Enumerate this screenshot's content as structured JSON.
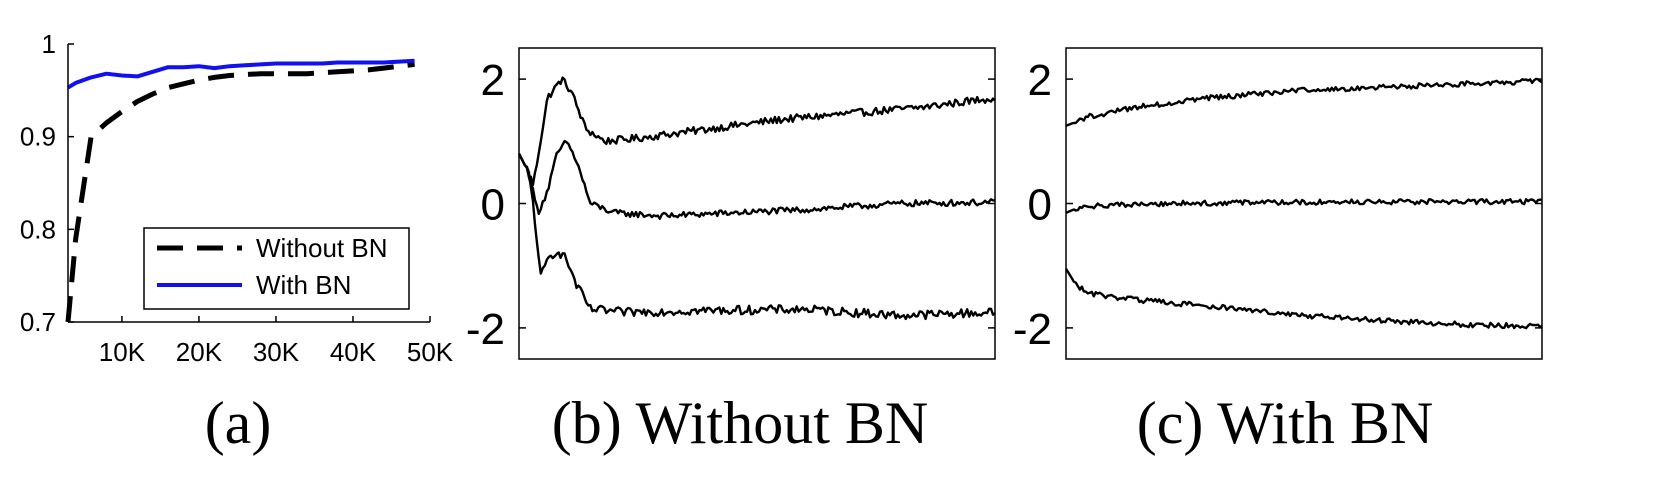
{
  "colors": {
    "with_bn": "#1010f0",
    "without_bn": "#000000",
    "axes": "#000000"
  },
  "chart_data": [
    {
      "type": "line",
      "caption": "(a)",
      "xlim": [
        3000,
        50000
      ],
      "ylim": [
        0.7,
        1.0
      ],
      "yticks": [
        0.7,
        0.8,
        0.9,
        1
      ],
      "ytick_labels": [
        "0.7",
        "0.8",
        "0.9",
        "1"
      ],
      "xticks": [
        10000,
        20000,
        30000,
        40000,
        50000
      ],
      "xtick_labels": [
        "10K",
        "20K",
        "30K",
        "40K",
        "50K"
      ],
      "legend": {
        "position": "lower-right",
        "entries": [
          "Without BN",
          "With BN"
        ]
      },
      "x": [
        3000,
        4000,
        6000,
        8000,
        10000,
        12000,
        14000,
        16000,
        18000,
        20000,
        22000,
        24000,
        26000,
        28000,
        30000,
        32000,
        34000,
        36000,
        38000,
        40000,
        42000,
        44000,
        46000,
        48000
      ],
      "series": [
        {
          "name": "Without BN",
          "style": "dashed",
          "values": [
            0.7,
            0.79,
            0.9,
            0.915,
            0.927,
            0.938,
            0.946,
            0.953,
            0.957,
            0.961,
            0.964,
            0.966,
            0.967,
            0.968,
            0.968,
            0.968,
            0.968,
            0.969,
            0.97,
            0.971,
            0.972,
            0.974,
            0.976,
            0.978
          ]
        },
        {
          "name": "With BN",
          "style": "solid",
          "values": [
            0.953,
            0.958,
            0.964,
            0.968,
            0.966,
            0.965,
            0.97,
            0.975,
            0.975,
            0.976,
            0.974,
            0.976,
            0.977,
            0.978,
            0.979,
            0.979,
            0.979,
            0.979,
            0.98,
            0.98,
            0.98,
            0.98,
            0.981,
            0.982
          ]
        }
      ]
    },
    {
      "type": "line",
      "caption": "(b) Without BN",
      "ylim": [
        -2.5,
        2.5
      ],
      "yticks": [
        -2,
        0,
        2
      ],
      "ytick_labels": [
        "-2",
        "0",
        "2"
      ],
      "x_tick_labels_shown": false,
      "samples": 240,
      "series": [
        {
          "name": "",
          "style": "solid",
          "noise": 0.06,
          "keyframes": [
            [
              0.0,
              0.8
            ],
            [
              0.02,
              0.5
            ],
            [
              0.03,
              0.3
            ],
            [
              0.06,
              1.7
            ],
            [
              0.09,
              2.0
            ],
            [
              0.11,
              1.8
            ],
            [
              0.14,
              1.2
            ],
            [
              0.18,
              1.0
            ],
            [
              0.25,
              1.05
            ],
            [
              0.4,
              1.2
            ],
            [
              0.55,
              1.35
            ],
            [
              0.7,
              1.45
            ],
            [
              0.85,
              1.55
            ],
            [
              1.0,
              1.7
            ]
          ]
        },
        {
          "name": "",
          "style": "solid",
          "noise": 0.05,
          "keyframes": [
            [
              0.0,
              0.8
            ],
            [
              0.02,
              0.5
            ],
            [
              0.04,
              -0.15
            ],
            [
              0.06,
              0.2
            ],
            [
              0.08,
              0.8
            ],
            [
              0.1,
              1.0
            ],
            [
              0.12,
              0.7
            ],
            [
              0.15,
              0.0
            ],
            [
              0.2,
              -0.15
            ],
            [
              0.3,
              -0.2
            ],
            [
              0.45,
              -0.15
            ],
            [
              0.6,
              -0.1
            ],
            [
              0.8,
              0.0
            ],
            [
              1.0,
              0.02
            ]
          ]
        },
        {
          "name": "",
          "style": "solid",
          "noise": 0.07,
          "keyframes": [
            [
              0.0,
              0.8
            ],
            [
              0.02,
              0.5
            ],
            [
              0.03,
              0.0
            ],
            [
              0.045,
              -1.2
            ],
            [
              0.06,
              -0.9
            ],
            [
              0.08,
              -0.75
            ],
            [
              0.1,
              -0.9
            ],
            [
              0.12,
              -1.3
            ],
            [
              0.15,
              -1.7
            ],
            [
              0.22,
              -1.75
            ],
            [
              0.4,
              -1.72
            ],
            [
              0.6,
              -1.7
            ],
            [
              0.8,
              -1.8
            ],
            [
              1.0,
              -1.75
            ]
          ]
        }
      ]
    },
    {
      "type": "line",
      "caption": "(c) With BN",
      "ylim": [
        -2.5,
        2.5
      ],
      "yticks": [
        -2,
        0,
        2
      ],
      "ytick_labels": [
        "-2",
        "0",
        "2"
      ],
      "x_tick_labels_shown": false,
      "samples": 240,
      "series": [
        {
          "name": "",
          "style": "solid",
          "noise": 0.04,
          "keyframes": [
            [
              0.0,
              1.25
            ],
            [
              0.05,
              1.4
            ],
            [
              0.15,
              1.55
            ],
            [
              0.3,
              1.7
            ],
            [
              0.5,
              1.82
            ],
            [
              0.7,
              1.88
            ],
            [
              0.85,
              1.93
            ],
            [
              1.0,
              1.97
            ]
          ]
        },
        {
          "name": "",
          "style": "solid",
          "noise": 0.04,
          "keyframes": [
            [
              0.0,
              -0.15
            ],
            [
              0.03,
              -0.05
            ],
            [
              0.2,
              0.0
            ],
            [
              0.5,
              0.02
            ],
            [
              0.8,
              0.03
            ],
            [
              1.0,
              0.03
            ]
          ]
        },
        {
          "name": "",
          "style": "solid",
          "noise": 0.04,
          "keyframes": [
            [
              0.0,
              -1.05
            ],
            [
              0.02,
              -1.3
            ],
            [
              0.05,
              -1.45
            ],
            [
              0.15,
              -1.55
            ],
            [
              0.3,
              -1.65
            ],
            [
              0.5,
              -1.8
            ],
            [
              0.7,
              -1.9
            ],
            [
              0.85,
              -1.95
            ],
            [
              1.0,
              -1.97
            ]
          ]
        }
      ]
    }
  ]
}
